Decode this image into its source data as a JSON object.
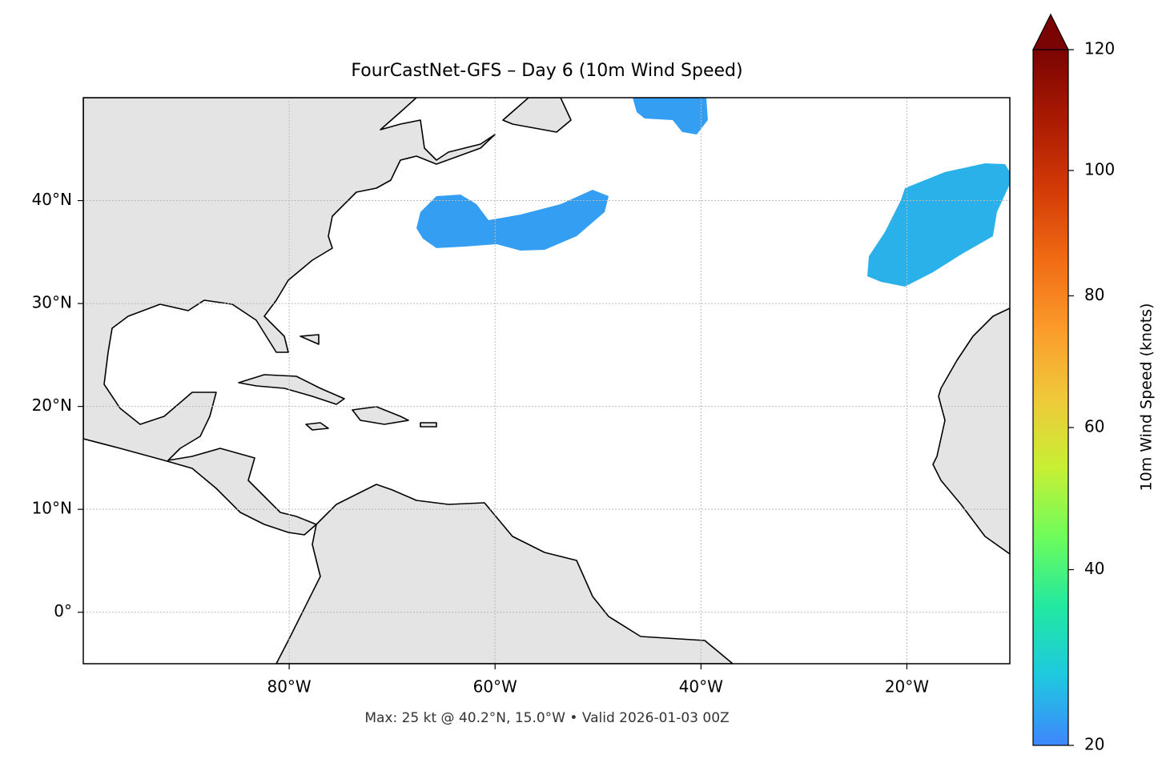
{
  "chart_data": {
    "type": "map",
    "title": "FourCastNet-GFS – Day 6 (10m Wind Speed)",
    "subtitle": "Max: 25 kt @ 40.2°N, 15.0°W • Valid 2026-01-03 00Z",
    "xlim": [
      -100,
      -10
    ],
    "ylim": [
      -5,
      50
    ],
    "xticks": [
      {
        "value": -80,
        "label": "80°W"
      },
      {
        "value": -60,
        "label": "60°W"
      },
      {
        "value": -40,
        "label": "40°W"
      },
      {
        "value": -20,
        "label": "20°W"
      }
    ],
    "yticks": [
      {
        "value": 0,
        "label": "0°"
      },
      {
        "value": 10,
        "label": "10°N"
      },
      {
        "value": 20,
        "label": "20°N"
      },
      {
        "value": 30,
        "label": "30°N"
      },
      {
        "value": 40,
        "label": "40°N"
      }
    ],
    "grid": true,
    "regions": [
      {
        "value": 22,
        "polygon": [
          [
            -46.64,
            50
          ],
          [
            -39.48,
            50
          ],
          [
            -39.33,
            47.82
          ],
          [
            -40.42,
            46.42
          ],
          [
            -41.82,
            46.66
          ],
          [
            -42.75,
            47.82
          ],
          [
            -45.47,
            47.98
          ],
          [
            -46.25,
            48.6
          ]
        ]
      },
      {
        "value": 22,
        "polygon": [
          [
            -67.25,
            38.88
          ],
          [
            -65.7,
            40.43
          ],
          [
            -63.36,
            40.59
          ],
          [
            -61.81,
            39.65
          ],
          [
            -60.64,
            38.1
          ],
          [
            -57.53,
            38.64
          ],
          [
            -53.64,
            39.65
          ],
          [
            -50.53,
            41.05
          ],
          [
            -48.97,
            40.43
          ],
          [
            -49.36,
            38.88
          ],
          [
            -52.08,
            36.54
          ],
          [
            -55.19,
            35.22
          ],
          [
            -57.53,
            35.14
          ],
          [
            -59.86,
            35.76
          ],
          [
            -62.97,
            35.53
          ],
          [
            -65.7,
            35.38
          ],
          [
            -67.02,
            36.31
          ],
          [
            -67.64,
            37.32
          ]
        ]
      },
      {
        "value": 24,
        "polygon": [
          [
            -20.19,
            41.21
          ],
          [
            -16.3,
            42.77
          ],
          [
            -12.41,
            43.62
          ],
          [
            -10.47,
            43.54
          ],
          [
            -10,
            42.77
          ],
          [
            -10,
            41.6
          ],
          [
            -11.25,
            38.88
          ],
          [
            -11.64,
            36.54
          ],
          [
            -14.75,
            34.75
          ],
          [
            -17.47,
            33.04
          ],
          [
            -20.19,
            31.64
          ],
          [
            -22.53,
            32.11
          ],
          [
            -23.85,
            32.65
          ],
          [
            -23.69,
            34.6
          ],
          [
            -22.14,
            36.93
          ],
          [
            -20.58,
            40.04
          ]
        ]
      }
    ],
    "colorbar_label": "10m Wind Speed (knots)",
    "clim": [
      20,
      120
    ],
    "colorbar_ticks": [
      20,
      40,
      60,
      80,
      100,
      120
    ],
    "colorbar_gamma": 0.855,
    "colorbar_extend": "max",
    "colormap": [
      "#3f86fc",
      "#1ec9e0",
      "#22e8a0",
      "#6efc5a",
      "#c8ef34",
      "#f0c83a",
      "#fb9a2a",
      "#f06a14",
      "#d23a06",
      "#aa1a02",
      "#7a0403"
    ]
  }
}
